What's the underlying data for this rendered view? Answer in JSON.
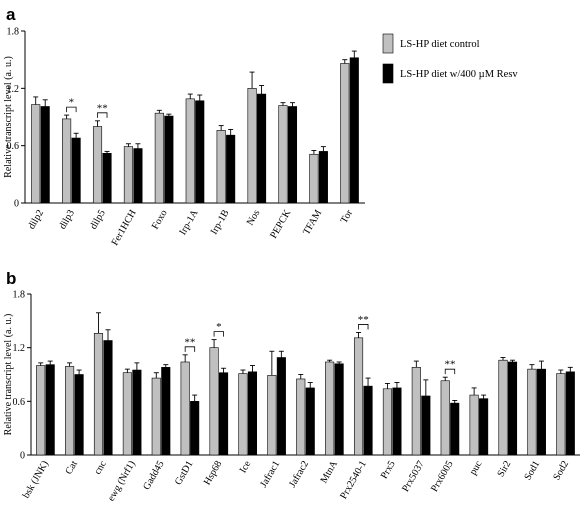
{
  "colors": {
    "control": "#c0c0c0",
    "resv": "#000000",
    "axis": "#000000"
  },
  "legend": {
    "items": [
      {
        "label": "LS-HP diet control",
        "color": "#c0c0c0"
      },
      {
        "label": "LS-HP diet w/400 µM Resv",
        "color": "#000000"
      }
    ],
    "placement": "top-right"
  },
  "chart_data": [
    {
      "type": "bar",
      "panel": "a",
      "ylabel": "Relative transcript level (a. u.)",
      "ylim": [
        0,
        1.8
      ],
      "yticks": [
        "0",
        "0.6",
        "1.2",
        "1.8"
      ],
      "categories": [
        "dilp2",
        "dilp3",
        "dilp5",
        "Fer1HCH",
        "Foxo",
        "Irp-1A",
        "Irp-1B",
        "Nos",
        "PEPCK",
        "TFAM",
        "Tor"
      ],
      "series": [
        {
          "name": "LS-HP diet control",
          "values": [
            1.03,
            0.88,
            0.8,
            0.59,
            0.94,
            1.09,
            0.76,
            1.2,
            1.02,
            0.51,
            1.46
          ],
          "errors": [
            0.08,
            0.04,
            0.06,
            0.03,
            0.03,
            0.05,
            0.05,
            0.17,
            0.03,
            0.04,
            0.04
          ]
        },
        {
          "name": "LS-HP diet w/400 µM Resv",
          "values": [
            1.01,
            0.68,
            0.52,
            0.57,
            0.91,
            1.07,
            0.71,
            1.14,
            1.01,
            0.54,
            1.52
          ],
          "errors": [
            0.07,
            0.05,
            0.02,
            0.05,
            0.02,
            0.06,
            0.06,
            0.09,
            0.04,
            0.05,
            0.07
          ]
        }
      ],
      "significance": [
        {
          "category": "dilp3",
          "label": "*"
        },
        {
          "category": "dilp5",
          "label": "**"
        }
      ]
    },
    {
      "type": "bar",
      "panel": "b",
      "ylabel": "Relative transcript level (a. u.)",
      "ylim": [
        0,
        1.8
      ],
      "yticks": [
        "0",
        "0.6",
        "1.2",
        "1.8"
      ],
      "categories": [
        "bsk (JNK)",
        "Cat",
        "cnc",
        "ewg (Nrf1)",
        "Gadd45",
        "GstD1",
        "Hsp68",
        "Ice",
        "Jafrac1",
        "Jafrac2",
        "MtnA",
        "Prx2540-1",
        "Prx5",
        "Prx5037",
        "Prx6005",
        "puc",
        "Sir2",
        "Sod1",
        "Sod2"
      ],
      "series": [
        {
          "name": "LS-HP diet control",
          "values": [
            1.0,
            0.99,
            1.36,
            0.92,
            0.86,
            1.04,
            1.2,
            0.91,
            0.89,
            0.85,
            1.04,
            1.31,
            0.74,
            0.98,
            0.83,
            0.67,
            1.06,
            0.96,
            0.91
          ],
          "errors": [
            0.03,
            0.04,
            0.23,
            0.04,
            0.06,
            0.08,
            0.09,
            0.04,
            0.27,
            0.05,
            0.02,
            0.06,
            0.06,
            0.07,
            0.04,
            0.08,
            0.03,
            0.05,
            0.04
          ]
        },
        {
          "name": "LS-HP diet w/400 µM Resv",
          "values": [
            1.01,
            0.9,
            1.28,
            0.95,
            0.98,
            0.6,
            0.92,
            0.93,
            1.09,
            0.75,
            1.02,
            0.77,
            0.75,
            0.66,
            0.58,
            0.63,
            1.04,
            0.96,
            0.93
          ],
          "errors": [
            0.04,
            0.05,
            0.12,
            0.08,
            0.03,
            0.07,
            0.05,
            0.07,
            0.07,
            0.06,
            0.02,
            0.09,
            0.06,
            0.18,
            0.03,
            0.04,
            0.02,
            0.09,
            0.05
          ]
        }
      ],
      "significance": [
        {
          "category": "GstD1",
          "label": "**"
        },
        {
          "category": "Hsp68",
          "label": "*"
        },
        {
          "category": "Prx2540-1",
          "label": "**"
        },
        {
          "category": "Prx6005",
          "label": "**"
        }
      ]
    }
  ]
}
